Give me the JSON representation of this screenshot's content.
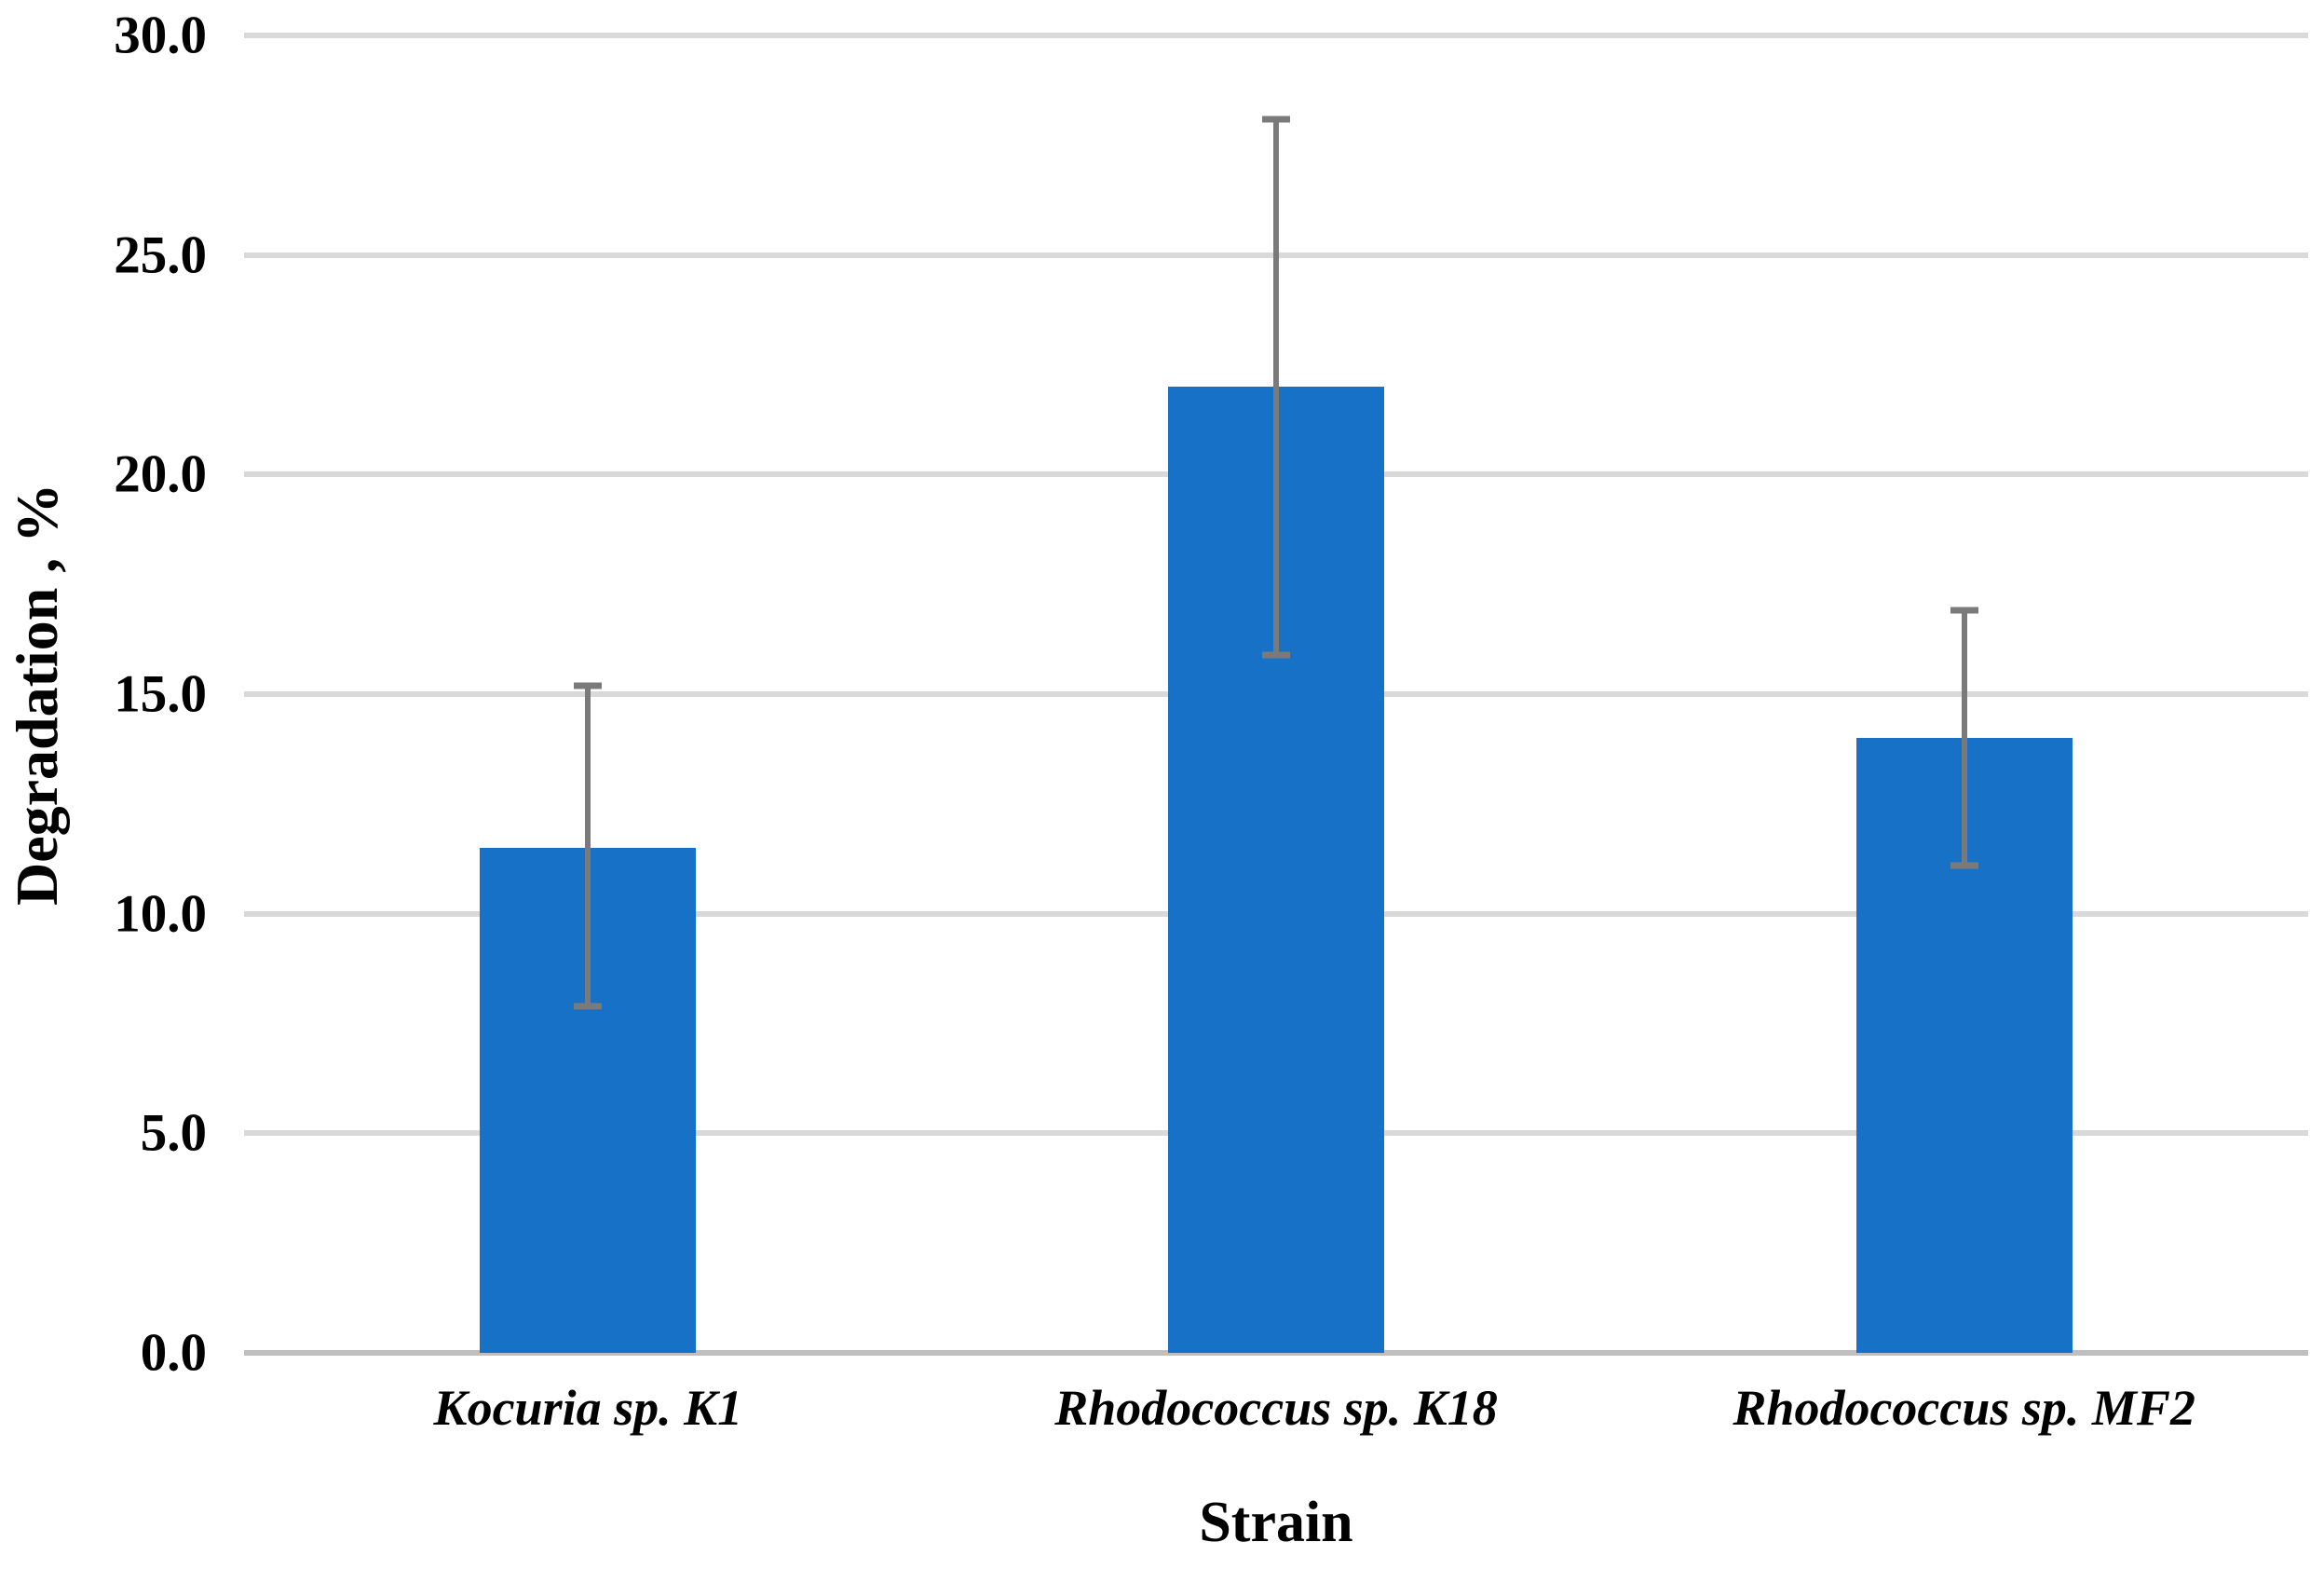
{
  "chart_data": {
    "type": "bar",
    "title": "",
    "xlabel": "Strain",
    "ylabel": "Degradation , %",
    "categories": [
      "Kocuria sp. K1",
      "Rhodococcus sp. K18",
      "Rhodococcus sp. MF2"
    ],
    "values": [
      11.5,
      22.0,
      14.0
    ],
    "error_bars": {
      "upper": [
        15.2,
        28.1,
        16.9
      ],
      "lower": [
        7.9,
        15.9,
        11.1
      ]
    },
    "ylim": [
      0,
      30
    ],
    "ytick_values": [
      0,
      5,
      10,
      15,
      20,
      25,
      30
    ],
    "ytick_labels": [
      "0.0",
      "5.0",
      "10.0",
      "15.0",
      "20.0",
      "25.0",
      "30.0"
    ],
    "grid": true,
    "legend": false,
    "colors": {
      "bar": "#1772C7",
      "gridline": "#D9D9D9",
      "axis_line": "#BFBFBF",
      "error_bar": "#7A7A7A",
      "text": "#000000",
      "background": "#FFFFFF"
    }
  }
}
